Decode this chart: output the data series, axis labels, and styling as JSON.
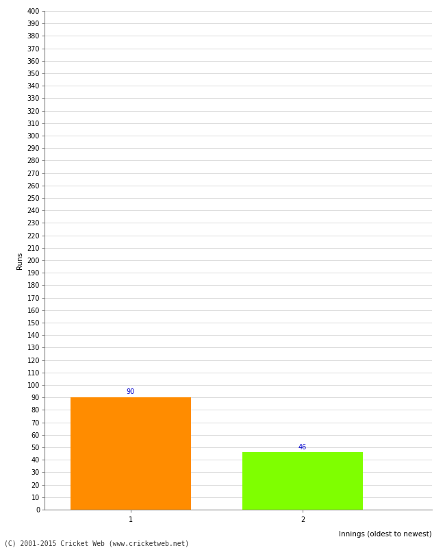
{
  "categories": [
    "1",
    "2"
  ],
  "values": [
    90,
    46
  ],
  "bar_colors": [
    "#FF8C00",
    "#7FFF00"
  ],
  "ylabel": "Runs",
  "xlabel": "Innings (oldest to newest)",
  "ylim": [
    0,
    400
  ],
  "ytick_step": 10,
  "bar_label_color": "#0000CC",
  "bar_label_fontsize": 7,
  "axis_label_fontsize": 7.5,
  "tick_fontsize": 7,
  "footer": "(C) 2001-2015 Cricket Web (www.cricketweb.net)",
  "background_color": "#FFFFFF",
  "grid_color": "#CCCCCC",
  "bar_positions": [
    1,
    3
  ],
  "bar_width": 1.4,
  "xlim": [
    0,
    4.5
  ]
}
